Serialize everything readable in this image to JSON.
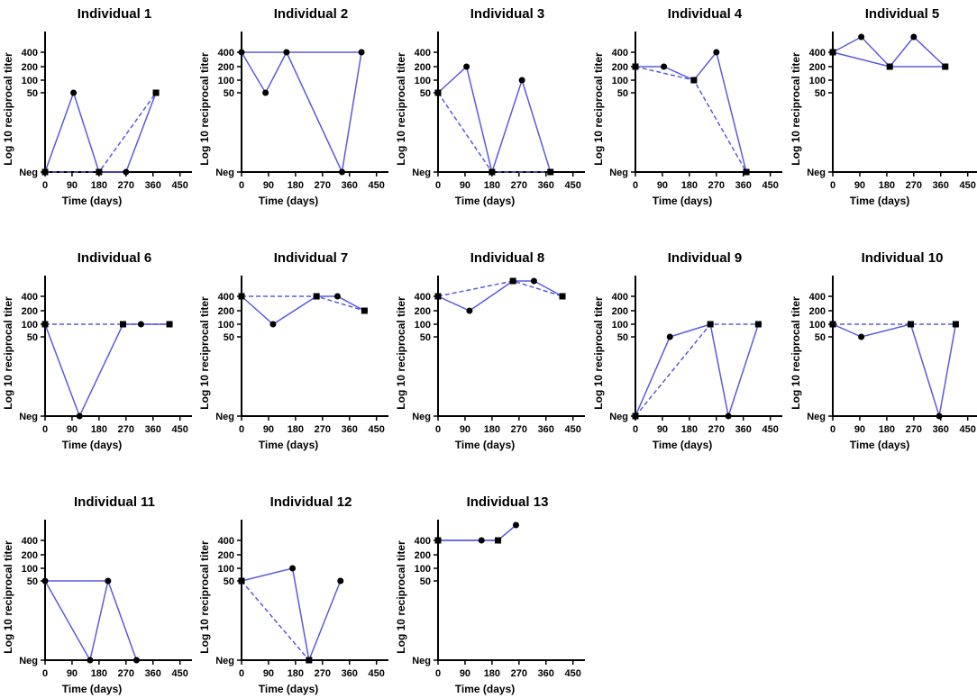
{
  "chart_data": {
    "type": "line",
    "panel_count": 13,
    "xlabel": "Time (days)",
    "ylabel": "Log 10 reciprocal titer",
    "x_ticks": [
      0,
      90,
      180,
      270,
      360,
      450
    ],
    "xlim": [
      0,
      490
    ],
    "y_ticks": [
      {
        "label": "Neg",
        "value": 0
      },
      {
        "label": "50",
        "value": 50
      },
      {
        "label": "100",
        "value": 100
      },
      {
        "label": "200",
        "value": 200
      },
      {
        "label": "400",
        "value": 400
      }
    ],
    "y_scale_note": "categorical log titer levels: Neg, 50, 100, 200, 400, 800 (800 plotted above the 400 tick, unlabeled)",
    "line_color": "#5a5ae0",
    "marker_color": "#000000",
    "marker_legend": {
      "circle": "solid-line series",
      "square": "dashed-line series"
    },
    "panels": [
      {
        "title": "Individual 1",
        "series": [
          {
            "style": "solid",
            "marker": "circle",
            "points": [
              [
                0,
                "Neg"
              ],
              [
                95,
                "50"
              ],
              [
                180,
                "Neg"
              ],
              [
                270,
                "Neg"
              ],
              [
                370,
                "50"
              ]
            ]
          },
          {
            "style": "dashed",
            "marker": "square",
            "points": [
              [
                0,
                "Neg"
              ],
              [
                180,
                "Neg"
              ],
              [
                370,
                "50"
              ]
            ]
          }
        ]
      },
      {
        "title": "Individual 2",
        "series": [
          {
            "style": "solid",
            "marker": "circle",
            "points": [
              [
                0,
                "400"
              ],
              [
                80,
                "50"
              ],
              [
                150,
                "400"
              ],
              [
                335,
                "Neg"
              ],
              [
                400,
                "400"
              ]
            ]
          },
          {
            "style": "solid",
            "marker": "none",
            "points": [
              [
                0,
                "400"
              ],
              [
                400,
                "400"
              ]
            ]
          }
        ]
      },
      {
        "title": "Individual 3",
        "series": [
          {
            "style": "solid",
            "marker": "circle",
            "points": [
              [
                0,
                "50"
              ],
              [
                95,
                "200"
              ],
              [
                180,
                "Neg"
              ],
              [
                280,
                "100"
              ],
              [
                375,
                "Neg"
              ]
            ]
          },
          {
            "style": "dashed",
            "marker": "square",
            "points": [
              [
                0,
                "50"
              ],
              [
                180,
                "Neg"
              ],
              [
                375,
                "Neg"
              ]
            ]
          }
        ]
      },
      {
        "title": "Individual 4",
        "series": [
          {
            "style": "solid",
            "marker": "circle",
            "points": [
              [
                0,
                "200"
              ],
              [
                95,
                "200"
              ],
              [
                195,
                "100"
              ],
              [
                270,
                "400"
              ],
              [
                370,
                "Neg"
              ]
            ]
          },
          {
            "style": "dashed",
            "marker": "square",
            "points": [
              [
                0,
                "200"
              ],
              [
                195,
                "100"
              ],
              [
                370,
                "Neg"
              ]
            ]
          }
        ]
      },
      {
        "title": "Individual 5",
        "series": [
          {
            "style": "solid",
            "marker": "circle",
            "points": [
              [
                0,
                "400"
              ],
              [
                95,
                "800"
              ],
              [
                190,
                "200"
              ],
              [
                270,
                "800"
              ],
              [
                375,
                "200"
              ]
            ]
          },
          {
            "style": "solid",
            "marker": "square",
            "points": [
              [
                0,
                "400"
              ],
              [
                190,
                "200"
              ],
              [
                375,
                "200"
              ]
            ]
          }
        ]
      },
      {
        "title": "Individual 6",
        "series": [
          {
            "style": "solid",
            "marker": "circle",
            "points": [
              [
                0,
                "100"
              ],
              [
                115,
                "Neg"
              ],
              [
                260,
                "100"
              ],
              [
                320,
                "100"
              ],
              [
                415,
                "100"
              ]
            ]
          },
          {
            "style": "dashed",
            "marker": "square",
            "points": [
              [
                0,
                "100"
              ],
              [
                260,
                "100"
              ],
              [
                415,
                "100"
              ]
            ]
          }
        ]
      },
      {
        "title": "Individual 7",
        "series": [
          {
            "style": "solid",
            "marker": "circle",
            "points": [
              [
                0,
                "400"
              ],
              [
                105,
                "100"
              ],
              [
                250,
                "400"
              ],
              [
                320,
                "400"
              ],
              [
                410,
                "200"
              ]
            ]
          },
          {
            "style": "dashed",
            "marker": "square",
            "points": [
              [
                0,
                "400"
              ],
              [
                250,
                "400"
              ],
              [
                410,
                "200"
              ]
            ]
          }
        ]
      },
      {
        "title": "Individual 8",
        "series": [
          {
            "style": "solid",
            "marker": "circle",
            "points": [
              [
                0,
                "400"
              ],
              [
                105,
                "200"
              ],
              [
                250,
                "800"
              ],
              [
                320,
                "800"
              ],
              [
                415,
                "400"
              ]
            ]
          },
          {
            "style": "dashed",
            "marker": "square",
            "points": [
              [
                0,
                "400"
              ],
              [
                250,
                "800"
              ],
              [
                415,
                "400"
              ]
            ]
          }
        ]
      },
      {
        "title": "Individual 9",
        "series": [
          {
            "style": "solid",
            "marker": "circle",
            "points": [
              [
                0,
                "Neg"
              ],
              [
                115,
                "50"
              ],
              [
                250,
                "100"
              ],
              [
                310,
                "Neg"
              ],
              [
                410,
                "100"
              ]
            ]
          },
          {
            "style": "dashed",
            "marker": "square",
            "points": [
              [
                0,
                "Neg"
              ],
              [
                250,
                "100"
              ],
              [
                410,
                "100"
              ]
            ]
          }
        ]
      },
      {
        "title": "Individual 10",
        "series": [
          {
            "style": "solid",
            "marker": "circle",
            "points": [
              [
                0,
                "100"
              ],
              [
                95,
                "50"
              ],
              [
                260,
                "100"
              ],
              [
                355,
                "Neg"
              ],
              [
                410,
                "100"
              ]
            ]
          },
          {
            "style": "dashed",
            "marker": "square",
            "points": [
              [
                0,
                "100"
              ],
              [
                260,
                "100"
              ],
              [
                410,
                "100"
              ]
            ]
          }
        ]
      },
      {
        "title": "Individual 11",
        "series": [
          {
            "style": "solid",
            "marker": "circle",
            "points": [
              [
                0,
                "50"
              ],
              [
                150,
                "Neg"
              ],
              [
                210,
                "50"
              ],
              [
                305,
                "Neg"
              ]
            ]
          },
          {
            "style": "solid",
            "marker": "none",
            "points": [
              [
                0,
                "50"
              ],
              [
                210,
                "50"
              ]
            ]
          }
        ]
      },
      {
        "title": "Individual 12",
        "series": [
          {
            "style": "solid",
            "marker": "circle",
            "points": [
              [
                0,
                "50"
              ],
              [
                170,
                "100"
              ],
              [
                225,
                "Neg"
              ],
              [
                330,
                "50"
              ]
            ]
          },
          {
            "style": "dashed",
            "marker": "square",
            "points": [
              [
                0,
                "50"
              ],
              [
                225,
                "Neg"
              ]
            ]
          }
        ]
      },
      {
        "title": "Individual 13",
        "series": [
          {
            "style": "solid",
            "marker": "circle",
            "points": [
              [
                0,
                "400"
              ],
              [
                145,
                "400"
              ],
              [
                200,
                "400"
              ],
              [
                260,
                "800"
              ]
            ]
          },
          {
            "style": "solid",
            "marker": "square",
            "points": [
              [
                0,
                "400"
              ],
              [
                200,
                "400"
              ]
            ]
          }
        ]
      }
    ]
  }
}
